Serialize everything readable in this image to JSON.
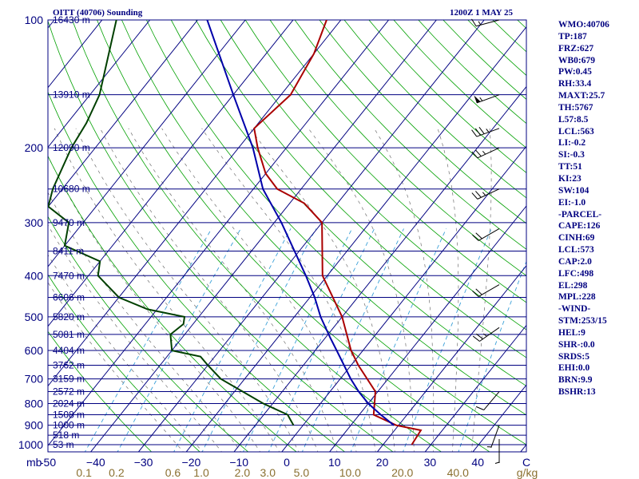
{
  "header": {
    "station": "OITT (40706) Sounding",
    "valid_time": "1200Z  1 MAY 25"
  },
  "indices": [
    "WMO:40706",
    "TP:187",
    "FRZ:627",
    "WB0:679",
    "PW:0.45",
    "RH:33.4",
    "MAXT:25.7",
    "TH:5767",
    "L57:8.5",
    "LCL:563",
    "LI:-0.2",
    "SI:-0.3",
    "TT:51",
    "KI:23",
    "SW:104",
    "EI:-1.0",
    "-PARCEL-",
    "CAPE:126",
    "CINH:69",
    "LCL:573",
    "CAP:2.0",
    "LFC:498",
    "EL:298",
    "MPL:228",
    "-WIND-",
    "STM:253/15",
    "HEL:9",
    "SHR-:0.0",
    "SRDS:5",
    "EHI:0.0",
    "BRN:9.9",
    "BSHR:13"
  ],
  "colors": {
    "isobar": "#000080",
    "dry_adiabat": "#00a000",
    "mixing_ratio": "#3aa0d8",
    "moist_adiabat": "#707070",
    "temperature": "#aa0000",
    "dewpoint": "#004000",
    "parcel": "#0000aa",
    "text": "#000080",
    "mixing_label": "#8a7030"
  },
  "chart_data": {
    "type": "line",
    "subtype": "skew-T log-P diagram",
    "title": "OITT (40706) Sounding",
    "x_axis_unit": "C",
    "mixing_ratio_unit": "g/kg",
    "pressure_unit": "mb",
    "pressure_range": [
      1000,
      100
    ],
    "temperature_range": [
      -50,
      50
    ],
    "pressure_ticks": [
      100,
      200,
      300,
      400,
      500,
      600,
      700,
      800,
      900,
      1000
    ],
    "temperature_ticks": [
      -50,
      -40,
      -30,
      -20,
      -10,
      0,
      10,
      20,
      30,
      40
    ],
    "temperature_tick_labels": [
      "-50",
      "−40",
      "−30",
      "−20",
      "−10",
      "0",
      "10",
      "20",
      "30",
      "40"
    ],
    "mixing_ratio_labels": [
      "0.1",
      "0.2",
      "0.6",
      "1.0",
      "2.0",
      "3.0",
      "5.0",
      "10.0",
      "20.0",
      "40.0"
    ],
    "height_labels": [
      {
        "p": 100,
        "label": "16430 m"
      },
      {
        "p": 150,
        "label": "13910 m"
      },
      {
        "p": 200,
        "label": "12090 m"
      },
      {
        "p": 250,
        "label": "10680 m"
      },
      {
        "p": 300,
        "label": "9470 m"
      },
      {
        "p": 350,
        "label": "8411 m"
      },
      {
        "p": 400,
        "label": "7470 m"
      },
      {
        "p": 450,
        "label": "6606 m"
      },
      {
        "p": 500,
        "label": "5820 m"
      },
      {
        "p": 550,
        "label": "5081 m"
      },
      {
        "p": 600,
        "label": "4404 m"
      },
      {
        "p": 650,
        "label": "3762 m"
      },
      {
        "p": 700,
        "label": "3159 m"
      },
      {
        "p": 750,
        "label": "2572 m"
      },
      {
        "p": 800,
        "label": "2024 m"
      },
      {
        "p": 850,
        "label": "1508 m"
      },
      {
        "p": 900,
        "label": "1000 m"
      },
      {
        "p": 950,
        "label": "518 m"
      },
      {
        "p": 1000,
        "label": "53 m"
      }
    ],
    "series": [
      {
        "key": "temperature",
        "points": [
          [
            1000,
            26
          ],
          [
            925,
            25.5
          ],
          [
            900,
            19.5
          ],
          [
            850,
            13
          ],
          [
            750,
            9.5
          ],
          [
            650,
            1.5
          ],
          [
            600,
            -2.5
          ],
          [
            500,
            -10
          ],
          [
            400,
            -21
          ],
          [
            300,
            -30
          ],
          [
            270,
            -37
          ],
          [
            250,
            -45
          ],
          [
            230,
            -50
          ],
          [
            200,
            -56
          ],
          [
            180,
            -60
          ],
          [
            150,
            -58
          ],
          [
            120,
            -60
          ],
          [
            100,
            -63
          ]
        ]
      },
      {
        "key": "dewpoint",
        "points": [
          [
            900,
            -2
          ],
          [
            850,
            -5
          ],
          [
            800,
            -12
          ],
          [
            700,
            -25
          ],
          [
            650,
            -30
          ],
          [
            620,
            -33
          ],
          [
            600,
            -40
          ],
          [
            550,
            -43
          ],
          [
            520,
            -42
          ],
          [
            500,
            -43
          ],
          [
            480,
            -52
          ],
          [
            450,
            -60
          ],
          [
            400,
            -68
          ],
          [
            370,
            -70
          ],
          [
            340,
            -80
          ],
          [
            300,
            -83
          ],
          [
            275,
            -90
          ],
          [
            250,
            -92
          ],
          [
            200,
            -95
          ],
          [
            175,
            -96
          ],
          [
            150,
            -98
          ],
          [
            100,
            -107
          ]
        ]
      },
      {
        "key": "parcel",
        "points": [
          [
            900,
            19
          ],
          [
            850,
            14.5
          ],
          [
            800,
            10
          ],
          [
            750,
            6
          ],
          [
            700,
            2.2
          ],
          [
            650,
            -1.5
          ],
          [
            600,
            -5.5
          ],
          [
            560,
            -9
          ],
          [
            500,
            -14.5
          ],
          [
            450,
            -19
          ],
          [
            400,
            -24.5
          ],
          [
            350,
            -31
          ],
          [
            300,
            -38.5
          ],
          [
            270,
            -44
          ],
          [
            250,
            -48
          ],
          [
            200,
            -57
          ],
          [
            150,
            -70
          ],
          [
            100,
            -88
          ]
        ]
      }
    ],
    "wind_barbs": [
      {
        "p": 100,
        "dir": 255,
        "kt": 15
      },
      {
        "p": 150,
        "dir": 250,
        "kt": 55
      },
      {
        "p": 180,
        "dir": 250,
        "kt": 35
      },
      {
        "p": 200,
        "dir": 245,
        "kt": 25
      },
      {
        "p": 250,
        "dir": 245,
        "kt": 25
      },
      {
        "p": 310,
        "dir": 240,
        "kt": 20
      },
      {
        "p": 420,
        "dir": 240,
        "kt": 20
      },
      {
        "p": 530,
        "dir": 235,
        "kt": 25
      },
      {
        "p": 750,
        "dir": 220,
        "kt": 10
      },
      {
        "p": 900,
        "dir": 200,
        "kt": 5
      },
      {
        "p": 970,
        "dir": 180,
        "kt": 5
      }
    ]
  }
}
